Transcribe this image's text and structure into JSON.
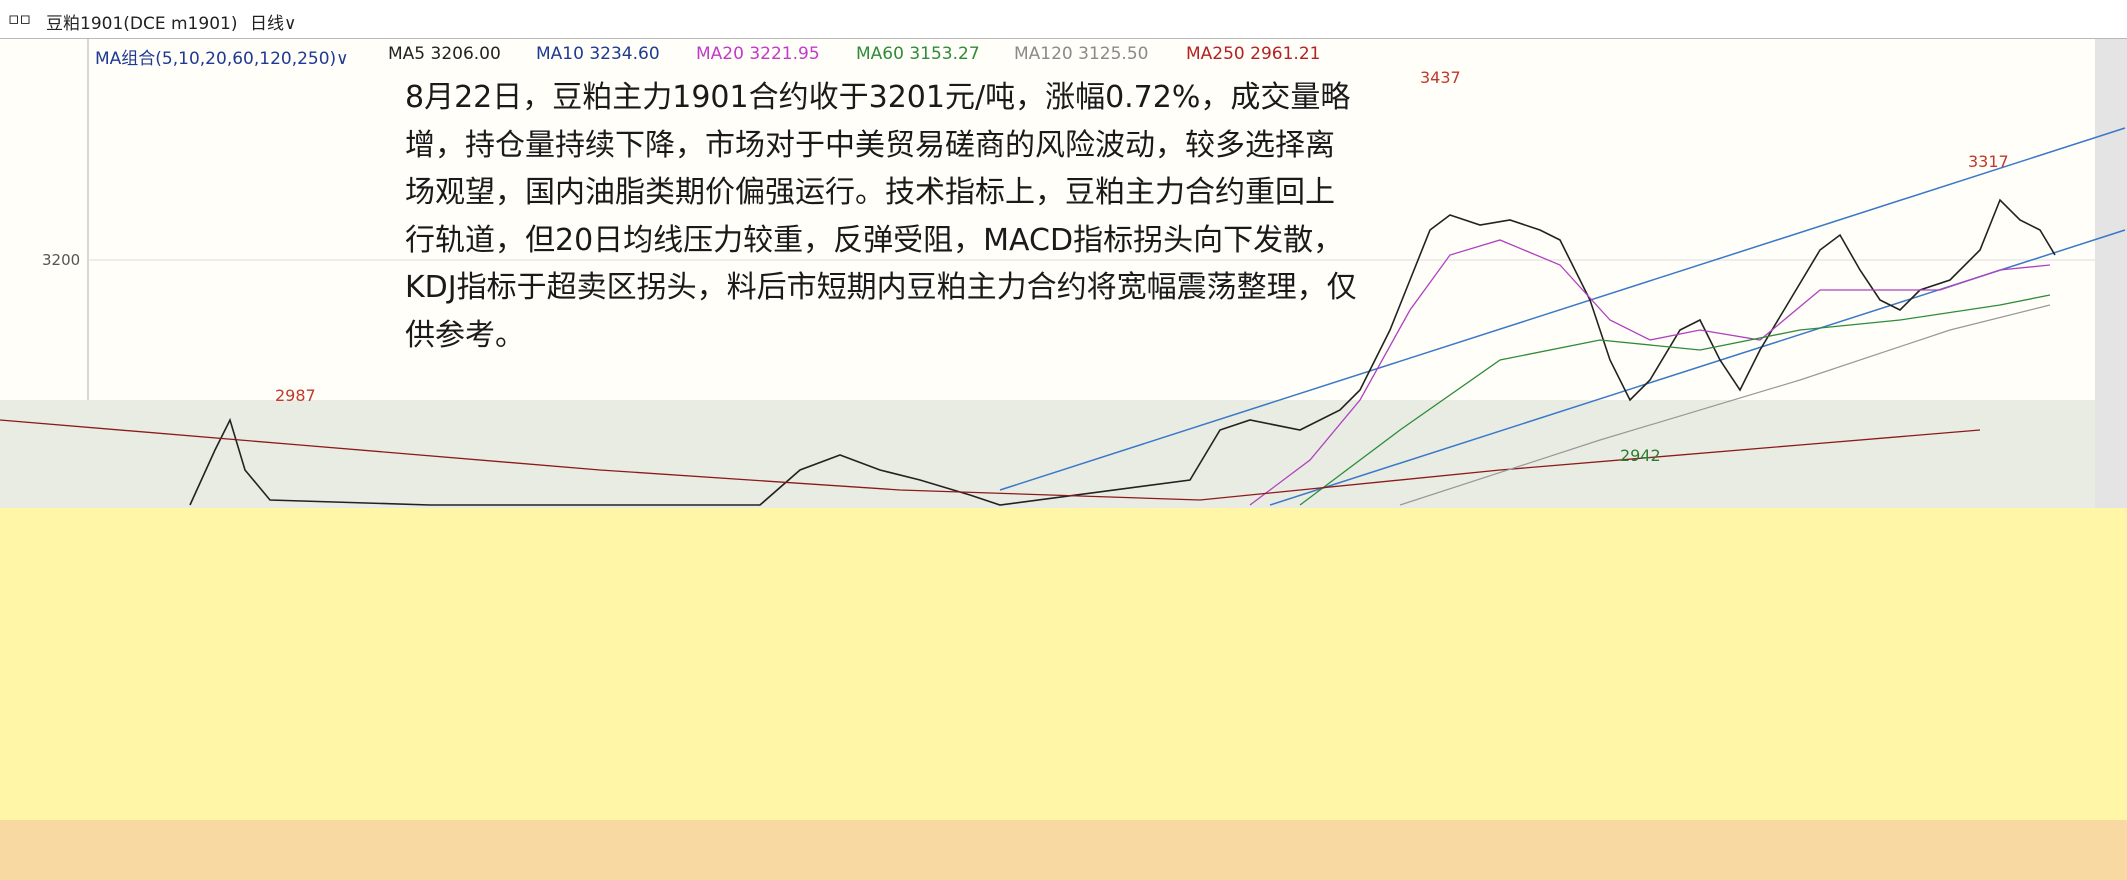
{
  "header": {
    "symbol": "豆粕1901(DCE m1901)",
    "period": "日线∨"
  },
  "ma_legend": {
    "group": "MA组合(5,10,20,60,120,250)∨",
    "items": [
      {
        "label": "MA5 3206.00",
        "color": "#222222"
      },
      {
        "label": "MA10 3234.60",
        "color": "#1f3a93"
      },
      {
        "label": "MA20 3221.95",
        "color": "#c13ac9"
      },
      {
        "label": "MA60 3153.27",
        "color": "#2e8b3a"
      },
      {
        "label": "MA120 3125.50",
        "color": "#8a8a8a"
      },
      {
        "label": "MA250 2961.21",
        "color": "#b22222"
      }
    ]
  },
  "annotation": {
    "lines": [
      "8月22日，豆粕主力1901合约收于3201元/吨，涨幅0.72%，成交量略",
      "增，持仓量持续下降，市场对于中美贸易磋商的风险波动，较多选择离",
      "场观望，国内油脂类期价偏强运行。技术指标上，豆粕主力合约重回上",
      "行轨道，但20日均线压力较重，反弹受阻，MACD指标拐头向下发散，",
      "KDJ指标于超卖区拐头，料后市短期内豆粕主力合约将宽幅震荡整理，仅",
      "供参考。"
    ]
  },
  "price_axis": {
    "labels": [
      "3200"
    ]
  },
  "price_marks": [
    {
      "label": "3437",
      "kind": "high"
    },
    {
      "label": "3317",
      "kind": "high"
    },
    {
      "label": "2987",
      "kind": "high"
    },
    {
      "label": "2942",
      "kind": "low"
    }
  ]
}
